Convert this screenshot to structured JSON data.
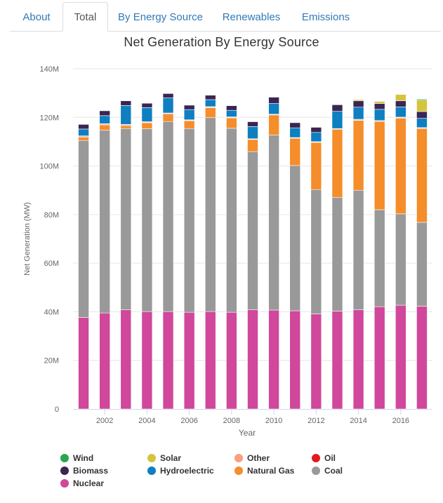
{
  "tabs": [
    {
      "label": "About",
      "active": false
    },
    {
      "label": "Total",
      "active": true
    },
    {
      "label": "By Energy Source",
      "active": false
    },
    {
      "label": "Renewables",
      "active": false
    },
    {
      "label": "Emissions",
      "active": false
    }
  ],
  "chart_data": {
    "type": "bar",
    "stacked": true,
    "title": "Net Generation By Energy Source",
    "xlabel": "Year",
    "ylabel": "Net Generation (MW)",
    "ylim": [
      0,
      140000000
    ],
    "y_ticks": [
      "0",
      "20M",
      "40M",
      "60M",
      "80M",
      "100M",
      "120M",
      "140M"
    ],
    "x_ticks": [
      "2002",
      "2004",
      "2006",
      "2008",
      "2010",
      "2012",
      "2014",
      "2016"
    ],
    "categories": [
      2001,
      2002,
      2003,
      2004,
      2005,
      2006,
      2007,
      2008,
      2009,
      2010,
      2011,
      2012,
      2013,
      2014,
      2015,
      2016,
      2017
    ],
    "grid": true,
    "legend_position": "bottom",
    "series": [
      {
        "name": "Nuclear",
        "color": "#d0479c",
        "values": [
          37700000,
          39500000,
          40800000,
          40100000,
          40100000,
          39800000,
          40100000,
          39800000,
          40800000,
          40700000,
          40400000,
          39100000,
          40300000,
          40800000,
          42100000,
          42700000,
          42300000
        ]
      },
      {
        "name": "Coal",
        "color": "#999999",
        "values": [
          72800000,
          75200000,
          74600000,
          75200000,
          78200000,
          75600000,
          79800000,
          75700000,
          65100000,
          72000000,
          59800000,
          51200000,
          46800000,
          49200000,
          39900000,
          37600000,
          34500000
        ]
      },
      {
        "name": "Natural Gas",
        "color": "#f58d2b",
        "values": [
          1400000,
          2200000,
          1200000,
          2500000,
          3000000,
          3200000,
          4100000,
          4300000,
          5000000,
          8300000,
          11200000,
          19400000,
          28000000,
          28800000,
          36300000,
          39400000,
          38600000
        ]
      },
      {
        "name": "Oil",
        "color": "#e31a1c",
        "values": [
          300000,
          300000,
          300000,
          200000,
          300000,
          200000,
          200000,
          200000,
          100000,
          100000,
          100000,
          100000,
          100000,
          100000,
          100000,
          100000,
          100000
        ]
      },
      {
        "name": "Other",
        "color": "#f9a07c",
        "values": [
          200000,
          200000,
          200000,
          200000,
          200000,
          200000,
          200000,
          200000,
          200000,
          200000,
          200000,
          200000,
          200000,
          300000,
          300000,
          300000,
          300000
        ]
      },
      {
        "name": "Hydroelectric",
        "color": "#0e7fc0",
        "values": [
          2800000,
          3300000,
          7800000,
          5800000,
          6200000,
          4200000,
          2900000,
          2700000,
          5000000,
          4400000,
          4000000,
          3800000,
          7100000,
          5000000,
          4600000,
          4200000,
          3800000
        ]
      },
      {
        "name": "Biomass",
        "color": "#3b2553",
        "values": [
          1900000,
          2000000,
          1900000,
          1800000,
          1800000,
          1800000,
          1800000,
          1900000,
          2000000,
          2600000,
          2100000,
          2100000,
          2700000,
          2600000,
          2400000,
          2500000,
          2800000
        ]
      },
      {
        "name": "Solar",
        "color": "#d4c43e",
        "values": [
          0,
          0,
          0,
          0,
          0,
          0,
          0,
          0,
          0,
          0,
          0,
          0,
          100000,
          500000,
          900000,
          2600000,
          4700000
        ]
      },
      {
        "name": "Wind",
        "color": "#28a750",
        "values": [
          0,
          0,
          0,
          0,
          0,
          0,
          0,
          0,
          0,
          0,
          0,
          0,
          0,
          0,
          100000,
          100000,
          400000
        ]
      }
    ],
    "legend_order": [
      "Wind",
      "Solar",
      "Other",
      "Oil",
      "Biomass",
      "Hydroelectric",
      "Natural Gas",
      "Coal",
      "Nuclear"
    ]
  }
}
